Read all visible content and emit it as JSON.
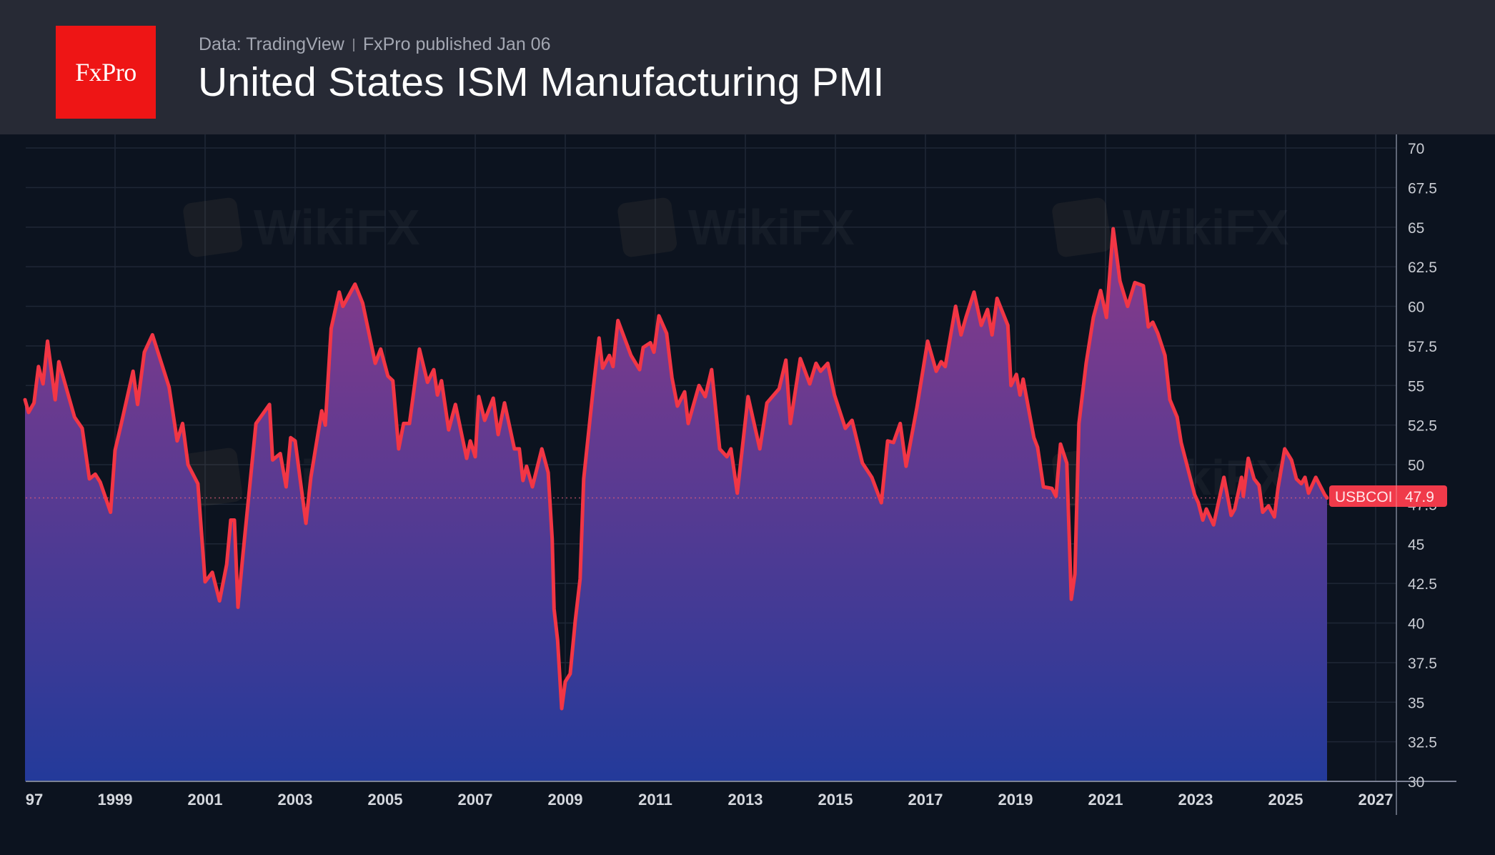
{
  "header": {
    "logo_text": "FxPro",
    "source": "Data: TradingView",
    "published": "FxPro published Jan 06",
    "title": "United States ISM Manufacturing PMI"
  },
  "watermark_text": "WikiFX",
  "colors": {
    "header_bg": "#272a35",
    "chart_bg": "#0c131f",
    "logo_red": "#ee1515",
    "line": "#f23645",
    "area_top": "#8a3a8a",
    "area_bottom": "#233a9a",
    "badge": "#f03a4a"
  },
  "chart_data": {
    "type": "area",
    "title": "United States ISM Manufacturing PMI",
    "xlabel": "",
    "ylabel": "",
    "series_name": "USBCOI",
    "last_value": "47.9",
    "xlim": [
      1997.0,
      2027.4
    ],
    "ylim": [
      30,
      70
    ],
    "y_ticks": [
      "30",
      "32.5",
      "35",
      "37.5",
      "40",
      "42.5",
      "45",
      "47.5",
      "50",
      "52.5",
      "55",
      "57.5",
      "60",
      "62.5",
      "65",
      "67.5",
      "70"
    ],
    "x_ticks": [
      {
        "label": "97",
        "year": 1997.0
      },
      {
        "label": "1999",
        "year": 1999
      },
      {
        "label": "2001",
        "year": 2001
      },
      {
        "label": "2003",
        "year": 2003
      },
      {
        "label": "2005",
        "year": 2005
      },
      {
        "label": "2007",
        "year": 2007
      },
      {
        "label": "2009",
        "year": 2009
      },
      {
        "label": "2011",
        "year": 2011
      },
      {
        "label": "2013",
        "year": 2013
      },
      {
        "label": "2015",
        "year": 2015
      },
      {
        "label": "2017",
        "year": 2017
      },
      {
        "label": "2019",
        "year": 2019
      },
      {
        "label": "2021",
        "year": 2021
      },
      {
        "label": "2023",
        "year": 2023
      },
      {
        "label": "2025",
        "year": 2025
      },
      {
        "label": "2027",
        "year": 2027
      }
    ],
    "grid": true,
    "legend": "none",
    "points": [
      [
        1997.0,
        54.1
      ],
      [
        1997.08,
        53.3
      ],
      [
        1997.2,
        53.9
      ],
      [
        1997.3,
        56.2
      ],
      [
        1997.4,
        55.1
      ],
      [
        1997.5,
        57.8
      ],
      [
        1997.67,
        54.1
      ],
      [
        1997.75,
        56.5
      ],
      [
        1998.1,
        53.0
      ],
      [
        1998.27,
        52.3
      ],
      [
        1998.43,
        49.1
      ],
      [
        1998.56,
        49.4
      ],
      [
        1998.67,
        48.9
      ],
      [
        1998.9,
        47.0
      ],
      [
        1999.0,
        50.9
      ],
      [
        1999.14,
        52.6
      ],
      [
        1999.4,
        55.9
      ],
      [
        1999.5,
        53.8
      ],
      [
        1999.65,
        57.1
      ],
      [
        1999.83,
        58.2
      ],
      [
        2000.2,
        54.9
      ],
      [
        2000.38,
        51.5
      ],
      [
        2000.5,
        52.6
      ],
      [
        2000.62,
        50.0
      ],
      [
        2000.84,
        48.8
      ],
      [
        2001.0,
        42.6
      ],
      [
        2001.16,
        43.2
      ],
      [
        2001.32,
        41.4
      ],
      [
        2001.48,
        43.7
      ],
      [
        2001.57,
        46.5
      ],
      [
        2001.65,
        46.5
      ],
      [
        2001.73,
        41.0
      ],
      [
        2001.84,
        44.3
      ],
      [
        2002.13,
        52.6
      ],
      [
        2002.43,
        53.8
      ],
      [
        2002.5,
        50.3
      ],
      [
        2002.67,
        50.7
      ],
      [
        2002.8,
        48.6
      ],
      [
        2002.9,
        51.7
      ],
      [
        2003.0,
        51.5
      ],
      [
        2003.24,
        46.3
      ],
      [
        2003.35,
        49.2
      ],
      [
        2003.59,
        53.4
      ],
      [
        2003.67,
        52.5
      ],
      [
        2003.8,
        58.6
      ],
      [
        2003.98,
        60.9
      ],
      [
        2004.06,
        60.0
      ],
      [
        2004.33,
        61.4
      ],
      [
        2004.5,
        60.2
      ],
      [
        2004.78,
        56.4
      ],
      [
        2004.9,
        57.3
      ],
      [
        2005.06,
        55.6
      ],
      [
        2005.17,
        55.3
      ],
      [
        2005.3,
        51.0
      ],
      [
        2005.41,
        52.6
      ],
      [
        2005.54,
        52.6
      ],
      [
        2005.76,
        57.3
      ],
      [
        2005.94,
        55.2
      ],
      [
        2006.08,
        56.0
      ],
      [
        2006.16,
        54.4
      ],
      [
        2006.25,
        55.3
      ],
      [
        2006.41,
        52.2
      ],
      [
        2006.56,
        53.8
      ],
      [
        2006.81,
        50.4
      ],
      [
        2006.89,
        51.5
      ],
      [
        2007.0,
        50.5
      ],
      [
        2007.08,
        54.3
      ],
      [
        2007.21,
        52.8
      ],
      [
        2007.4,
        54.2
      ],
      [
        2007.51,
        51.9
      ],
      [
        2007.65,
        53.9
      ],
      [
        2007.87,
        51.0
      ],
      [
        2007.98,
        51.0
      ],
      [
        2008.06,
        49.0
      ],
      [
        2008.14,
        49.9
      ],
      [
        2008.27,
        48.6
      ],
      [
        2008.48,
        51.0
      ],
      [
        2008.62,
        49.5
      ],
      [
        2008.71,
        45.3
      ],
      [
        2008.75,
        40.9
      ],
      [
        2008.83,
        38.9
      ],
      [
        2008.92,
        34.6
      ],
      [
        2009.0,
        36.3
      ],
      [
        2009.11,
        36.8
      ],
      [
        2009.22,
        40.1
      ],
      [
        2009.33,
        42.8
      ],
      [
        2009.41,
        49.1
      ],
      [
        2009.62,
        54.8
      ],
      [
        2009.75,
        58.0
      ],
      [
        2009.83,
        56.1
      ],
      [
        2009.98,
        56.9
      ],
      [
        2010.06,
        56.2
      ],
      [
        2010.17,
        59.1
      ],
      [
        2010.46,
        56.9
      ],
      [
        2010.65,
        56.0
      ],
      [
        2010.73,
        57.4
      ],
      [
        2010.89,
        57.7
      ],
      [
        2010.97,
        57.1
      ],
      [
        2011.08,
        59.4
      ],
      [
        2011.25,
        58.3
      ],
      [
        2011.37,
        55.5
      ],
      [
        2011.49,
        53.7
      ],
      [
        2011.65,
        54.6
      ],
      [
        2011.73,
        52.6
      ],
      [
        2011.97,
        55.0
      ],
      [
        2012.11,
        54.3
      ],
      [
        2012.25,
        56.0
      ],
      [
        2012.43,
        51.0
      ],
      [
        2012.59,
        50.5
      ],
      [
        2012.68,
        51.0
      ],
      [
        2012.82,
        48.2
      ],
      [
        2013.06,
        54.3
      ],
      [
        2013.32,
        51.0
      ],
      [
        2013.48,
        53.9
      ],
      [
        2013.75,
        54.8
      ],
      [
        2013.9,
        56.6
      ],
      [
        2014.0,
        52.6
      ],
      [
        2014.22,
        56.7
      ],
      [
        2014.43,
        55.1
      ],
      [
        2014.57,
        56.4
      ],
      [
        2014.67,
        55.9
      ],
      [
        2014.83,
        56.4
      ],
      [
        2014.98,
        54.4
      ],
      [
        2015.22,
        52.3
      ],
      [
        2015.37,
        52.8
      ],
      [
        2015.6,
        50.1
      ],
      [
        2015.81,
        49.2
      ],
      [
        2016.02,
        47.6
      ],
      [
        2016.16,
        51.5
      ],
      [
        2016.29,
        51.4
      ],
      [
        2016.44,
        52.6
      ],
      [
        2016.57,
        49.9
      ],
      [
        2016.81,
        53.6
      ],
      [
        2017.05,
        57.8
      ],
      [
        2017.24,
        55.9
      ],
      [
        2017.35,
        56.5
      ],
      [
        2017.44,
        56.2
      ],
      [
        2017.67,
        60.0
      ],
      [
        2017.79,
        58.2
      ],
      [
        2017.9,
        59.3
      ],
      [
        2018.08,
        60.9
      ],
      [
        2018.24,
        58.8
      ],
      [
        2018.38,
        59.8
      ],
      [
        2018.48,
        58.2
      ],
      [
        2018.59,
        60.5
      ],
      [
        2018.83,
        58.8
      ],
      [
        2018.9,
        55.0
      ],
      [
        2019.02,
        55.7
      ],
      [
        2019.1,
        54.4
      ],
      [
        2019.17,
        55.4
      ],
      [
        2019.41,
        51.7
      ],
      [
        2019.49,
        51.1
      ],
      [
        2019.62,
        48.6
      ],
      [
        2019.81,
        48.5
      ],
      [
        2019.9,
        48.0
      ],
      [
        2020.0,
        51.3
      ],
      [
        2020.14,
        50.1
      ],
      [
        2020.24,
        41.5
      ],
      [
        2020.32,
        43.1
      ],
      [
        2020.41,
        52.6
      ],
      [
        2020.57,
        56.4
      ],
      [
        2020.73,
        59.3
      ],
      [
        2020.89,
        61.0
      ],
      [
        2021.02,
        59.3
      ],
      [
        2021.17,
        64.9
      ],
      [
        2021.32,
        61.6
      ],
      [
        2021.49,
        60.0
      ],
      [
        2021.65,
        61.5
      ],
      [
        2021.84,
        61.3
      ],
      [
        2021.95,
        58.7
      ],
      [
        2022.05,
        59.0
      ],
      [
        2022.16,
        58.3
      ],
      [
        2022.32,
        56.9
      ],
      [
        2022.43,
        54.1
      ],
      [
        2022.59,
        53.0
      ],
      [
        2022.68,
        51.4
      ],
      [
        2022.98,
        48.1
      ],
      [
        2023.06,
        47.6
      ],
      [
        2023.16,
        46.5
      ],
      [
        2023.24,
        47.2
      ],
      [
        2023.4,
        46.2
      ],
      [
        2023.63,
        49.2
      ],
      [
        2023.79,
        46.8
      ],
      [
        2023.87,
        47.2
      ],
      [
        2024.02,
        49.2
      ],
      [
        2024.06,
        48.0
      ],
      [
        2024.17,
        50.4
      ],
      [
        2024.3,
        49.1
      ],
      [
        2024.41,
        48.7
      ],
      [
        2024.49,
        47.0
      ],
      [
        2024.62,
        47.4
      ],
      [
        2024.75,
        46.7
      ],
      [
        2024.83,
        48.5
      ],
      [
        2024.98,
        51.0
      ],
      [
        2025.13,
        50.3
      ],
      [
        2025.24,
        49.1
      ],
      [
        2025.35,
        48.8
      ],
      [
        2025.43,
        49.2
      ],
      [
        2025.51,
        48.2
      ],
      [
        2025.67,
        49.2
      ],
      [
        2025.87,
        48.1
      ],
      [
        2025.92,
        47.9
      ]
    ]
  }
}
